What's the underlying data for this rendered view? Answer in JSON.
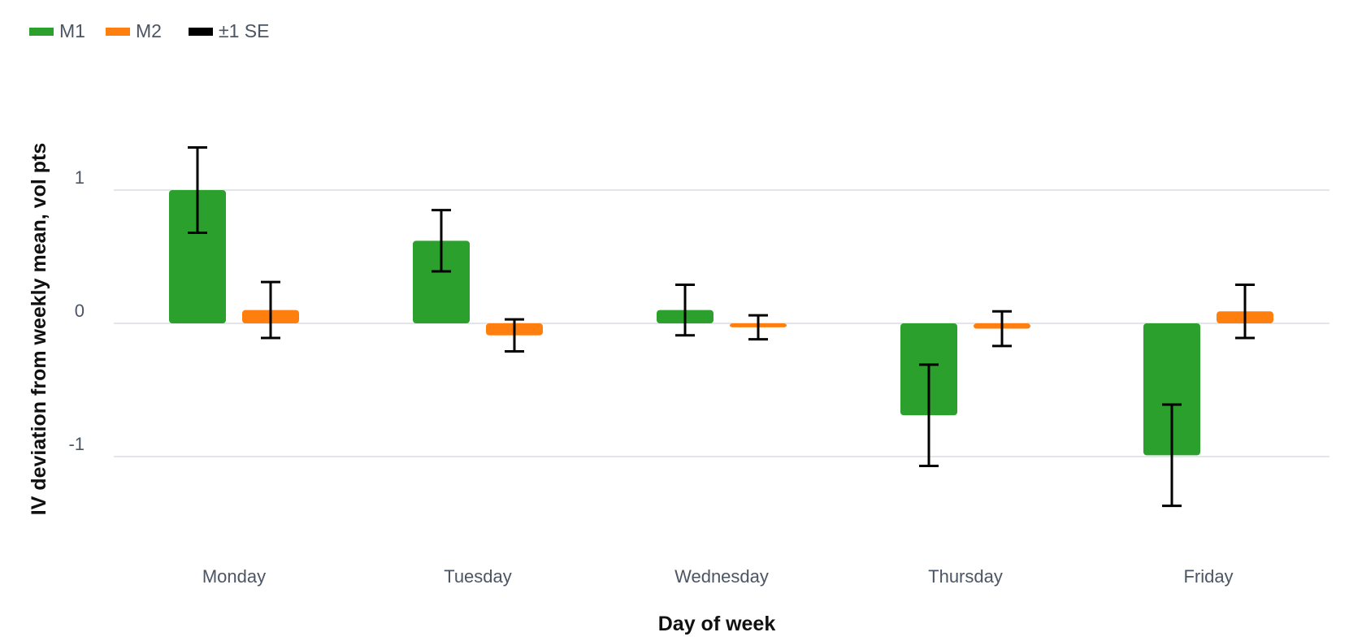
{
  "chart_data": {
    "type": "bar",
    "xlabel": "Day of week",
    "ylabel": "IV deviation from weekly mean, vol pts",
    "categories": [
      "Monday",
      "Tuesday",
      "Wednesday",
      "Thursday",
      "Friday"
    ],
    "ylim": [
      -1.8,
      1.35
    ],
    "yticks": [
      -1,
      0,
      1
    ],
    "ytick_labels": [
      "-1",
      "0",
      "1"
    ],
    "grid": true,
    "legend_position": "top-left",
    "series": [
      {
        "name": "M1",
        "color": "#2ca02c",
        "values": [
          1.0,
          0.62,
          0.1,
          -0.69,
          -0.99
        ],
        "error": [
          0.32,
          0.23,
          0.19,
          0.38,
          0.38
        ]
      },
      {
        "name": "M2",
        "color": "#ff7f0e",
        "values": [
          0.1,
          -0.09,
          -0.03,
          -0.04,
          0.09
        ],
        "error": [
          0.21,
          0.12,
          0.09,
          0.13,
          0.2
        ]
      }
    ],
    "error_legend": {
      "name": "±1 SE",
      "color": "#000000"
    }
  }
}
